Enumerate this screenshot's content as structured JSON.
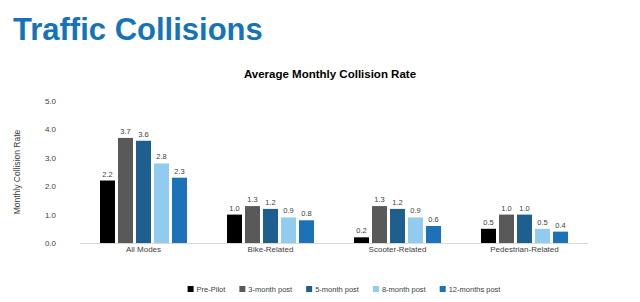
{
  "header": {
    "title": "Traffic Collisions"
  },
  "chart_data": {
    "type": "bar",
    "title": "Average Monthly Collision Rate",
    "ylabel": "Monthly Collision Rate",
    "categories": [
      "All Modes",
      "Bike-Related",
      "Scooter-Related",
      "Pedestrian-Related"
    ],
    "series": [
      {
        "name": "Pre-Pilot",
        "color": "#000000",
        "values": [
          2.2,
          1.0,
          0.2,
          0.5
        ],
        "value_labels": [
          "2.2",
          "1.0",
          "0.2",
          "0.5"
        ]
      },
      {
        "name": "3-month post",
        "color": "#595959",
        "values": [
          3.7,
          1.3,
          1.3,
          1.0
        ],
        "value_labels": [
          "3.7",
          "1.3",
          "1.3",
          "1.0"
        ]
      },
      {
        "name": "5-month post",
        "color": "#1f5f8f",
        "values": [
          3.6,
          1.2,
          1.2,
          1.0
        ],
        "value_labels": [
          "3.6",
          "1.2",
          "1.2",
          "1.0"
        ]
      },
      {
        "name": "8-month post",
        "color": "#92cbf0",
        "values": [
          2.8,
          0.9,
          0.9,
          0.5
        ],
        "value_labels": [
          "2.8",
          "0.9",
          "0.9",
          "0.5"
        ]
      },
      {
        "name": "12-months post",
        "color": "#1b72b8",
        "values": [
          2.3,
          0.8,
          0.6,
          0.4
        ],
        "value_labels": [
          "2.3",
          "0.8",
          "0.6",
          "0.4"
        ]
      }
    ],
    "ylim": [
      0,
      5
    ],
    "yticks": [
      {
        "value": 0,
        "label": "0.0"
      },
      {
        "value": 1,
        "label": "1.0"
      },
      {
        "value": 2,
        "label": "2.0"
      },
      {
        "value": 3,
        "label": "3.0"
      },
      {
        "value": 4,
        "label": "4.0"
      },
      {
        "value": 5,
        "label": "5.0"
      }
    ],
    "grid": false,
    "data_labels": true,
    "legend": "bottom"
  }
}
